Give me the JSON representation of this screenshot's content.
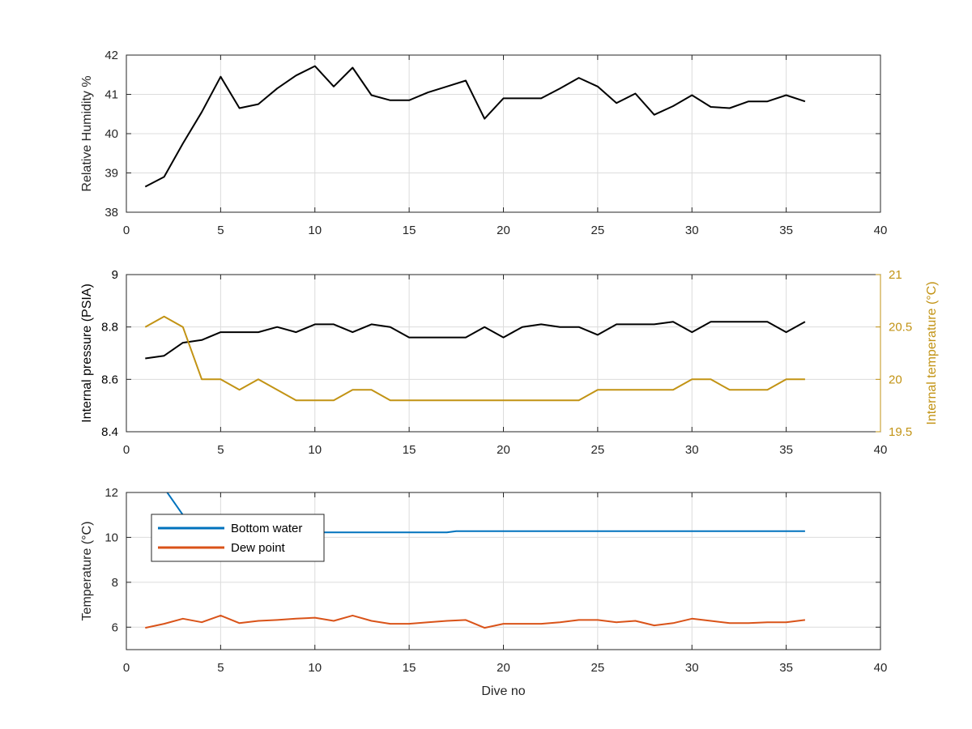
{
  "chart_data": [
    {
      "type": "line",
      "xlabel": "",
      "ylabel": "Relative Humidity %",
      "xlim": [
        0,
        40
      ],
      "ylim": [
        38,
        42
      ],
      "xticks": [
        "0",
        "5",
        "10",
        "15",
        "20",
        "25",
        "30",
        "35",
        "40"
      ],
      "yticks": [
        "38",
        "39",
        "40",
        "41",
        "42"
      ],
      "grid": true,
      "series": [
        {
          "color": "#000000",
          "x": [
            1,
            2,
            3,
            4,
            5,
            6,
            7,
            8,
            9,
            10,
            11,
            12,
            13,
            14,
            15,
            16,
            17,
            18,
            19,
            20,
            21,
            22,
            23,
            24,
            25,
            26,
            27,
            28,
            29,
            30,
            31,
            32,
            33,
            34,
            35,
            36
          ],
          "y": [
            38.65,
            38.9,
            39.75,
            40.55,
            41.45,
            40.65,
            40.75,
            41.15,
            41.48,
            41.72,
            41.2,
            41.68,
            40.98,
            40.85,
            40.85,
            41.05,
            41.2,
            41.35,
            40.38,
            40.9,
            40.9,
            40.9,
            41.15,
            41.42,
            41.2,
            40.78,
            41.02,
            40.48,
            40.7,
            40.98,
            40.68,
            40.65,
            40.82,
            40.82,
            40.98,
            40.82
          ]
        }
      ]
    },
    {
      "type": "line",
      "xlabel": "",
      "ylabel": "Internal pressure (PSIA)",
      "ylabel_right": "Internal temperature (°C)",
      "xlim": [
        0,
        40
      ],
      "ylim": [
        8.4,
        9
      ],
      "ylim_right": [
        19.5,
        21
      ],
      "xticks": [
        "0",
        "5",
        "10",
        "15",
        "20",
        "25",
        "30",
        "35",
        "40"
      ],
      "yticks": [
        "8.4",
        "8.6",
        "8.8",
        "9"
      ],
      "yticks_right": [
        "19.5",
        "20",
        "20.5",
        "21"
      ],
      "grid": true,
      "right_axis_color": "#c29314",
      "series": [
        {
          "axis": "left",
          "color": "#000000",
          "x": [
            1,
            2,
            3,
            4,
            5,
            6,
            7,
            8,
            9,
            10,
            11,
            12,
            13,
            14,
            15,
            16,
            17,
            18,
            19,
            20,
            21,
            22,
            23,
            24,
            25,
            26,
            27,
            28,
            29,
            30,
            31,
            32,
            33,
            34,
            35,
            36
          ],
          "y": [
            8.68,
            8.69,
            8.74,
            8.75,
            8.78,
            8.78,
            8.78,
            8.8,
            8.78,
            8.81,
            8.81,
            8.78,
            8.81,
            8.8,
            8.76,
            8.76,
            8.76,
            8.76,
            8.8,
            8.76,
            8.8,
            8.81,
            8.8,
            8.8,
            8.77,
            8.81,
            8.81,
            8.81,
            8.82,
            8.78,
            8.82,
            8.82,
            8.82,
            8.82,
            8.78,
            8.82
          ]
        },
        {
          "axis": "right",
          "color": "#c29314",
          "x": [
            1,
            2,
            3,
            4,
            5,
            6,
            7,
            8,
            9,
            10,
            11,
            12,
            13,
            14,
            15,
            16,
            17,
            18,
            19,
            20,
            21,
            22,
            23,
            24,
            25,
            26,
            27,
            28,
            29,
            30,
            31,
            32,
            33,
            34,
            35,
            36
          ],
          "y": [
            20.5,
            20.6,
            20.5,
            20.0,
            20.0,
            19.9,
            20.0,
            19.9,
            19.8,
            19.8,
            19.8,
            19.9,
            19.9,
            19.8,
            19.8,
            19.8,
            19.8,
            19.8,
            19.8,
            19.8,
            19.8,
            19.8,
            19.8,
            19.8,
            19.9,
            19.9,
            19.9,
            19.9,
            19.9,
            20.0,
            20.0,
            19.9,
            19.9,
            19.9,
            20.0,
            20.0
          ]
        }
      ]
    },
    {
      "type": "line",
      "xlabel": "Dive no",
      "ylabel": "Temperature (°C)",
      "xlim": [
        0,
        40
      ],
      "ylim": [
        5,
        12
      ],
      "xticks": [
        "0",
        "5",
        "10",
        "15",
        "20",
        "25",
        "30",
        "35",
        "40"
      ],
      "yticks": [
        "6",
        "8",
        "10",
        "12"
      ],
      "ytick_values": [
        6,
        8,
        10,
        12
      ],
      "grid": true,
      "legend": "top-left",
      "series": [
        {
          "name": "Bottom water",
          "color": "#0072bd",
          "x": [
            1,
            2,
            3,
            4,
            5,
            6,
            7,
            8,
            9,
            10,
            11,
            12,
            13,
            14,
            15,
            16,
            17,
            17.5,
            18,
            19,
            20,
            21,
            22,
            23,
            24,
            25,
            26,
            27,
            28,
            29,
            30,
            31,
            32,
            33,
            34,
            35,
            36
          ],
          "y": [
            13.4,
            12.2,
            11.0,
            10.25,
            10.22,
            10.22,
            10.22,
            10.22,
            10.22,
            10.22,
            10.22,
            10.22,
            10.22,
            10.22,
            10.22,
            10.22,
            10.22,
            10.28,
            10.28,
            10.28,
            10.28,
            10.28,
            10.28,
            10.28,
            10.28,
            10.28,
            10.28,
            10.28,
            10.28,
            10.28,
            10.28,
            10.28,
            10.28,
            10.28,
            10.28,
            10.28,
            10.28
          ]
        },
        {
          "name": "Dew point",
          "color": "#d95319",
          "x": [
            1,
            2,
            3,
            4,
            5,
            6,
            7,
            8,
            9,
            10,
            11,
            12,
            13,
            14,
            15,
            16,
            17,
            18,
            19,
            20,
            21,
            22,
            23,
            24,
            25,
            26,
            27,
            28,
            29,
            30,
            31,
            32,
            33,
            34,
            35,
            36
          ],
          "y": [
            5.97,
            6.15,
            6.38,
            6.22,
            6.52,
            6.18,
            6.28,
            6.32,
            6.38,
            6.42,
            6.28,
            6.52,
            6.28,
            6.15,
            6.15,
            6.22,
            6.28,
            6.32,
            5.97,
            6.15,
            6.15,
            6.15,
            6.22,
            6.32,
            6.32,
            6.22,
            6.28,
            6.08,
            6.18,
            6.38,
            6.28,
            6.18,
            6.18,
            6.22,
            6.22,
            6.32
          ]
        }
      ]
    }
  ]
}
